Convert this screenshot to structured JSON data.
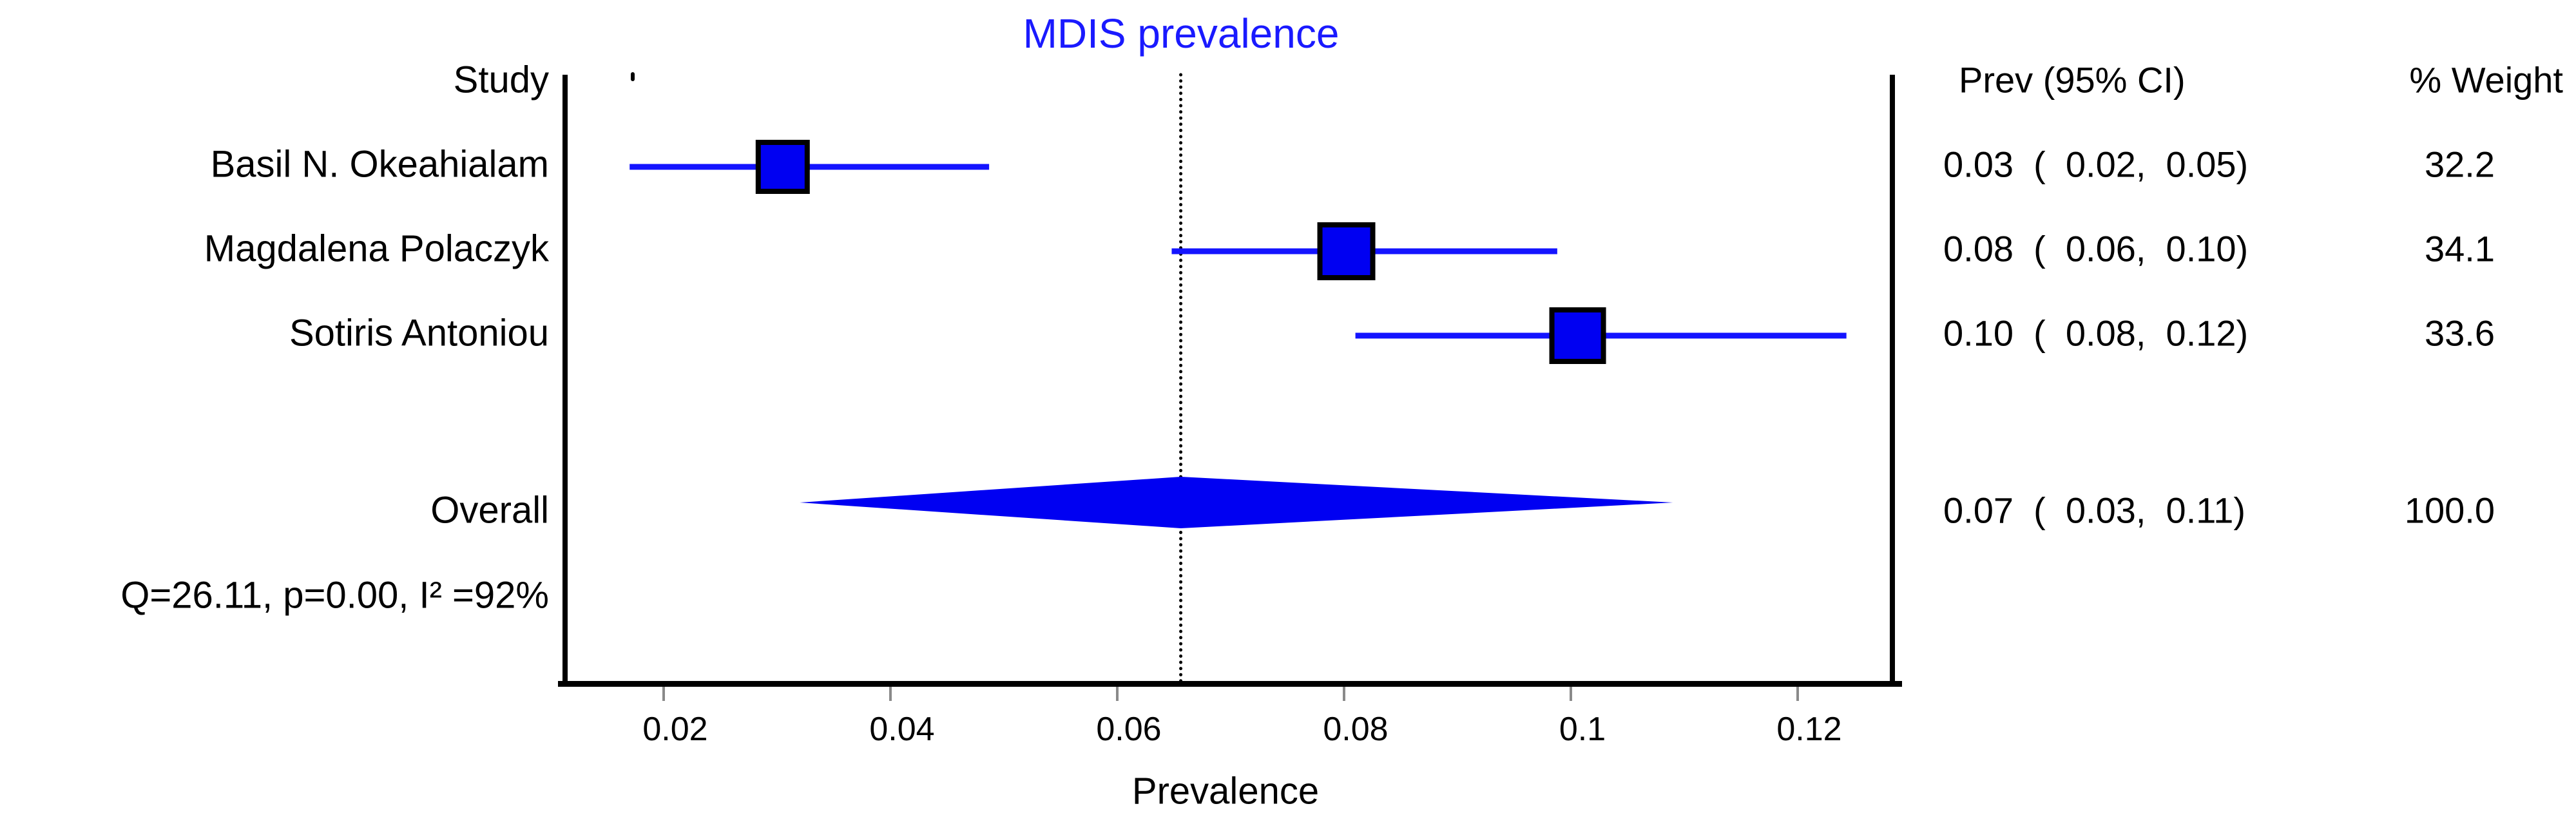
{
  "title": {
    "text": "MDIS prevalence",
    "color": "#1a1aff"
  },
  "columns": {
    "study_header": "Study",
    "prev_header": "Prev (95% CI)",
    "weight_header": "% Weight"
  },
  "chart_data": {
    "type": "forest",
    "title": "MDIS prevalence",
    "xlabel": "Prevalence",
    "x_ticks": [
      "0.02",
      "0.04",
      "0.06",
      "0.08",
      "0.1",
      "0.12"
    ],
    "x_tick_values": [
      0.02,
      0.04,
      0.06,
      0.08,
      0.1,
      0.12
    ],
    "x_range": [
      0.0115,
      0.1286
    ],
    "reference_line": 0.0656,
    "grid": false,
    "studies": [
      {
        "label": "Basil N. Okeahialam",
        "prev": 0.03,
        "ci_low": 0.02,
        "ci_high": 0.05,
        "weight": 32.2,
        "prev_text": "0.03  (  0.02,  0.05)",
        "weight_text": "32.2",
        "plotted": {
          "est": 0.0305,
          "lo": 0.017,
          "hi": 0.0487
        }
      },
      {
        "label": "Magdalena Polaczyk",
        "prev": 0.08,
        "ci_low": 0.06,
        "ci_high": 0.1,
        "weight": 34.1,
        "prev_text": "0.08  (  0.06,  0.10)",
        "weight_text": "34.1",
        "plotted": {
          "est": 0.0802,
          "lo": 0.0648,
          "hi": 0.0988
        }
      },
      {
        "label": "Sotiris Antoniou",
        "prev": 0.1,
        "ci_low": 0.08,
        "ci_high": 0.12,
        "weight": 33.6,
        "prev_text": "0.10  (  0.08,  0.12)",
        "weight_text": "33.6",
        "plotted": {
          "est": 0.1006,
          "lo": 0.081,
          "hi": 0.1243
        }
      }
    ],
    "overall": {
      "label": "Overall",
      "prev": 0.07,
      "ci_low": 0.03,
      "ci_high": 0.11,
      "weight": 100.0,
      "prev_text": "0.07  (  0.03,  0.11)",
      "weight_text": "100.0",
      "plotted": {
        "est": 0.0656,
        "lo": 0.032,
        "hi": 0.109
      }
    },
    "heterogeneity": "Q=26.11, p=0.00, I² =92%",
    "colors": {
      "marker_fill": "#0000f2",
      "marker_border": "#000000",
      "ci_line": "#1414ff",
      "diamond": "#0000f2",
      "reference_line": "#000000",
      "axis": "#000000",
      "tick": "#8a8a8a"
    }
  }
}
